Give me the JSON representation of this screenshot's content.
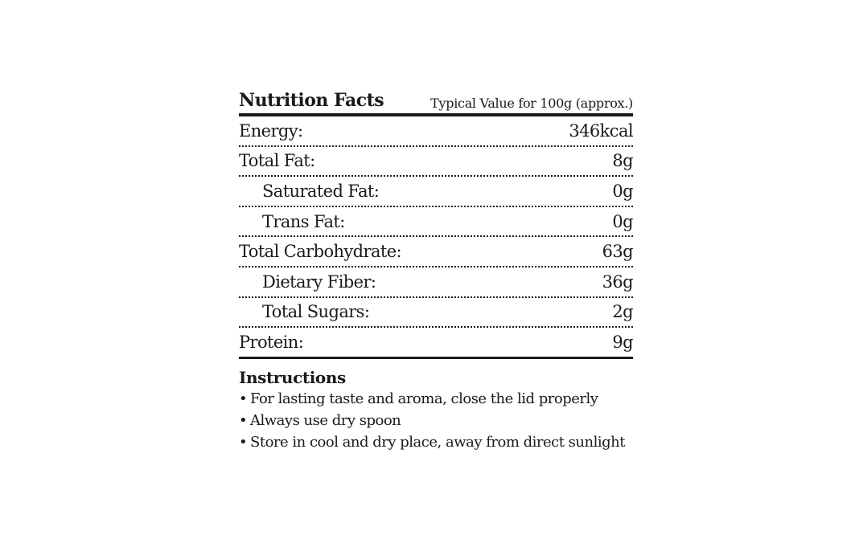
{
  "nutrition": {
    "title": "Nutrition Facts",
    "subtitle": "Typical Value for 100g (approx.)",
    "rows": [
      {
        "label": "Energy:",
        "value": "346kcal"
      },
      {
        "label": "Total Fat:",
        "value": "8g"
      },
      {
        "label": "Saturated Fat:",
        "value": "0g"
      },
      {
        "label": "Trans Fat:",
        "value": "0g"
      },
      {
        "label": "Total Carbohydrate:",
        "value": "63g"
      },
      {
        "label": "Dietary Fiber:",
        "value": "36g"
      },
      {
        "label": "Total Sugars:",
        "value": "2g"
      },
      {
        "label": "Protein:",
        "value": "9g"
      }
    ]
  },
  "instructions": {
    "title": "Instructions",
    "bullet": "•",
    "items": [
      "For lasting taste and aroma, close the lid properly",
      "Always use dry spoon",
      "Store in cool and dry place, away from direct sunlight"
    ]
  }
}
